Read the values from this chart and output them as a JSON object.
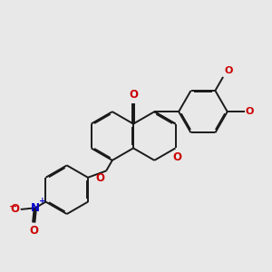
{
  "bg_color": "#e8e8e8",
  "bond_color": "#1a1a1a",
  "oxygen_color": "#cc0000",
  "nitrogen_color": "#0000cc",
  "lw": 1.4,
  "dbo": 0.035,
  "figsize": [
    3.0,
    3.0
  ],
  "dpi": 100,
  "xlim": [
    0.5,
    9.5
  ],
  "ylim": [
    1.5,
    8.5
  ]
}
